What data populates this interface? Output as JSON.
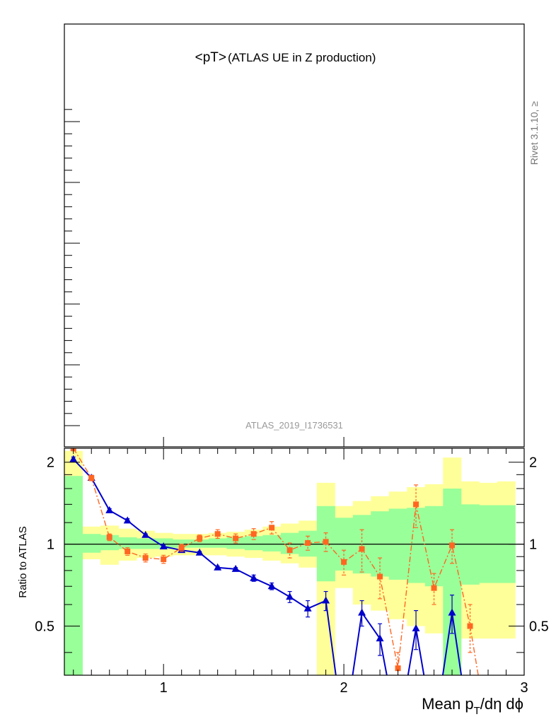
{
  "chart_data": [
    {
      "type": "line",
      "title_main": "<pT>",
      "title_sub": " (ATLAS UE in Z production)",
      "watermark": "ATLAS_2019_I1736531",
      "side_label": "Rivet 3.1.10, ≥",
      "xlim": [
        0.45,
        3.0
      ],
      "ylabel": "",
      "ylim": [
        0,
        1
      ],
      "series": []
    },
    {
      "type": "line",
      "ylabel": "Ratio to ATLAS",
      "ylim": [
        0.33,
        2.25
      ],
      "yscale": "log",
      "xlim": [
        0.45,
        3.0
      ],
      "xlabel_parts": {
        "pre": "Mean p",
        "sub": "T",
        "post": "/dη dϕ"
      },
      "xticks": [
        1,
        2,
        3
      ],
      "yticks": [
        0.5,
        1,
        2
      ],
      "reference_line": 1,
      "bins": [
        0.5,
        0.6,
        0.7,
        0.8,
        0.9,
        1.0,
        1.1,
        1.2,
        1.3,
        1.4,
        1.5,
        1.6,
        1.7,
        1.8,
        1.9,
        2.0,
        2.1,
        2.2,
        2.3,
        2.4,
        2.5,
        2.6,
        2.7,
        2.8,
        2.9
      ],
      "band_green": [
        [
          0.33,
          1.78
        ],
        [
          0.93,
          1.09
        ],
        [
          0.95,
          1.08
        ],
        [
          0.96,
          1.06
        ],
        [
          0.96,
          1.05
        ],
        [
          0.96,
          1.05
        ],
        [
          0.97,
          1.04
        ],
        [
          0.97,
          1.04
        ],
        [
          0.97,
          1.05
        ],
        [
          0.96,
          1.06
        ],
        [
          0.95,
          1.07
        ],
        [
          0.94,
          1.08
        ],
        [
          0.92,
          1.1
        ],
        [
          0.9,
          1.12
        ],
        [
          0.73,
          1.38
        ],
        [
          0.8,
          1.25
        ],
        [
          0.78,
          1.28
        ],
        [
          0.76,
          1.32
        ],
        [
          0.74,
          1.35
        ],
        [
          0.72,
          1.36
        ],
        [
          0.7,
          1.38
        ],
        [
          0.33,
          1.6
        ],
        [
          0.71,
          1.4
        ],
        [
          0.72,
          1.39
        ],
        [
          0.72,
          1.39
        ]
      ],
      "band_yellow": [
        [
          0.33,
          2.2
        ],
        [
          0.88,
          1.16
        ],
        [
          0.84,
          1.17
        ],
        [
          0.87,
          1.14
        ],
        [
          0.89,
          1.12
        ],
        [
          0.9,
          1.1
        ],
        [
          0.91,
          1.09
        ],
        [
          0.91,
          1.09
        ],
        [
          0.91,
          1.1
        ],
        [
          0.9,
          1.11
        ],
        [
          0.89,
          1.13
        ],
        [
          0.87,
          1.16
        ],
        [
          0.85,
          1.19
        ],
        [
          0.82,
          1.22
        ],
        [
          0.33,
          1.68
        ],
        [
          0.69,
          1.38
        ],
        [
          0.6,
          1.44
        ],
        [
          0.57,
          1.5
        ],
        [
          0.53,
          1.56
        ],
        [
          0.5,
          1.62
        ],
        [
          0.47,
          1.66
        ],
        [
          0.33,
          2.08
        ],
        [
          0.45,
          1.7
        ],
        [
          0.45,
          1.68
        ],
        [
          0.45,
          1.7
        ]
      ],
      "series": [
        {
          "name": "",
          "color": "#0000cc",
          "marker": "triangle",
          "style": "solid",
          "values": [
            2.05,
            1.75,
            1.33,
            1.22,
            1.08,
            0.98,
            0.95,
            0.93,
            0.82,
            0.81,
            0.75,
            0.7,
            0.64,
            0.58,
            0.62,
            0.2,
            0.56,
            0.45,
            0.2,
            0.49,
            0.2,
            0.56,
            0.2,
            null,
            null
          ],
          "errors": [
            0.04,
            0.04,
            0.02,
            0.02,
            0.01,
            0.01,
            0.01,
            0.01,
            0.01,
            0.01,
            0.02,
            0.02,
            0.03,
            0.04,
            0.05,
            0.08,
            0.06,
            0.06,
            0.1,
            0.08,
            0.1,
            0.09,
            0.1,
            null,
            null
          ]
        },
        {
          "name": "",
          "color": "#ff6622",
          "marker": "square",
          "style": "dashdot",
          "values": [
            2.25,
            1.75,
            1.06,
            0.94,
            0.89,
            0.88,
            0.97,
            1.05,
            1.09,
            1.05,
            1.09,
            1.15,
            0.95,
            1.01,
            1.02,
            0.86,
            0.96,
            0.76,
            0.35,
            1.4,
            0.69,
            0.99,
            0.5,
            0.2,
            null
          ],
          "errors": [
            0.05,
            0.04,
            0.03,
            0.03,
            0.03,
            0.03,
            0.03,
            0.03,
            0.04,
            0.04,
            0.05,
            0.06,
            0.06,
            0.06,
            0.08,
            0.09,
            0.17,
            0.13,
            0.05,
            0.25,
            0.09,
            0.14,
            0.1,
            0.1,
            null
          ]
        }
      ]
    }
  ]
}
